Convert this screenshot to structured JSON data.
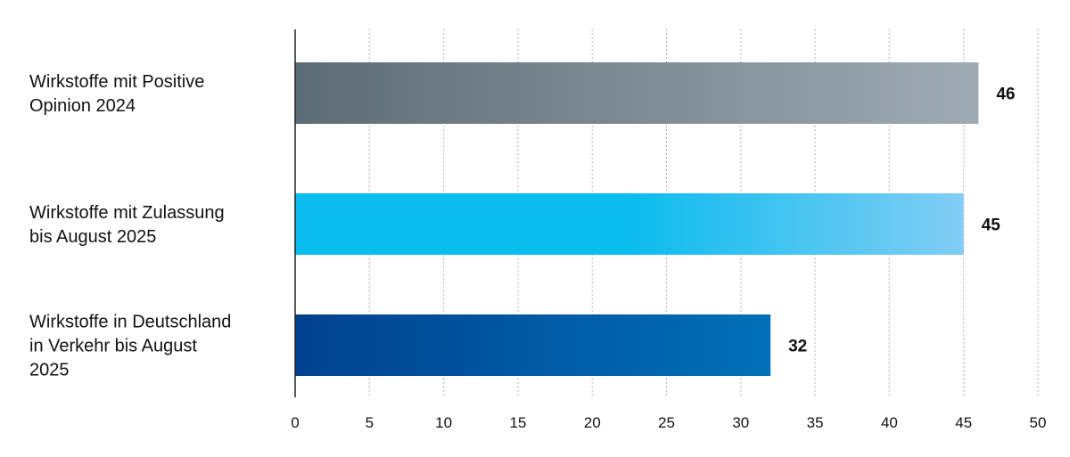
{
  "chart_data": {
    "type": "bar",
    "orientation": "horizontal",
    "categories": [
      [
        "Wirkstoffe mit Positive",
        "Opinion 2024"
      ],
      [
        "Wirkstoffe mit Zulassung",
        "bis August 2025"
      ],
      [
        "Wirkstoffe in Deutschland",
        "in Verkehr bis August",
        "2025"
      ]
    ],
    "values": [
      46,
      45,
      32
    ],
    "value_labels": [
      "46",
      "45",
      "32"
    ],
    "xlim": [
      0,
      50
    ],
    "ticks": [
      0,
      5,
      10,
      15,
      20,
      25,
      30,
      35,
      40,
      45,
      50
    ],
    "tick_labels": [
      "0",
      "5",
      "10",
      "15",
      "20",
      "25",
      "30",
      "35",
      "40",
      "45",
      "50"
    ],
    "grid": "vertical dotted",
    "legend": "none",
    "bar_gradients": [
      [
        "#5c6c76",
        "#9eabb3"
      ],
      [
        "#0bbcee",
        "#82cdf4"
      ],
      [
        "#00418f",
        "#0070b8"
      ]
    ],
    "colors": {
      "text": "#111111",
      "axis": "#222222",
      "grid": "#999999"
    }
  }
}
